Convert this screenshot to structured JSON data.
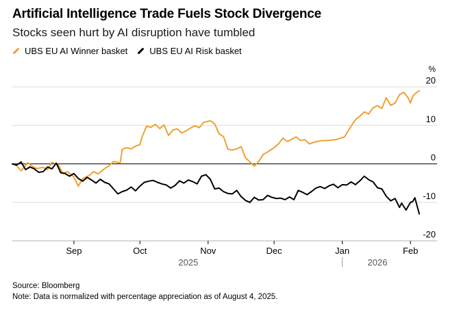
{
  "header": {
    "title": "Artificial Intelligence Trade Fuels Stock Divergence",
    "subtitle": "Stocks seen hurt by AI disruption have tumbled"
  },
  "footer": {
    "source": "Source: Bloomberg",
    "note": "Note: Data is normalized with percentage appreciation as of August 4, 2025."
  },
  "colors": {
    "winner": "#f0a030",
    "risk": "#000000",
    "grid": "#dcdcdc",
    "zero": "#000000"
  },
  "chart_data": {
    "type": "line",
    "y_unit": "%",
    "ylim": [
      -20,
      20
    ],
    "y_ticks": [
      20,
      10,
      0,
      -10,
      -20
    ],
    "x_range": [
      "2025-08-04",
      "2026-02-05"
    ],
    "x_ticks": [
      {
        "date": "2025-09-01",
        "label": "Sep"
      },
      {
        "date": "2025-10-01",
        "label": "Oct"
      },
      {
        "date": "2025-11-01",
        "label": "Nov"
      },
      {
        "date": "2025-12-01",
        "label": "Dec"
      },
      {
        "date": "2026-01-01",
        "label": "Jan"
      },
      {
        "date": "2026-02-01",
        "label": "Feb"
      }
    ],
    "year_labels": [
      {
        "date": "2025-10-23",
        "label": "2025"
      },
      {
        "date": "2026-01-17",
        "label": "2026"
      }
    ],
    "year_divider": "2026-01-01",
    "grid": true,
    "legend_position": "top-left",
    "series": [
      {
        "name": "UBS EU AI Winner basket",
        "color": "#f0a030",
        "points": [
          [
            "2025-08-04",
            0
          ],
          [
            "2025-08-06",
            -0.5
          ],
          [
            "2025-08-08",
            -1.8
          ],
          [
            "2025-08-11",
            0.3
          ],
          [
            "2025-08-13",
            -0.6
          ],
          [
            "2025-08-15",
            -1.2
          ],
          [
            "2025-08-18",
            -0.9
          ],
          [
            "2025-08-20",
            -1.5
          ],
          [
            "2025-08-22",
            0.4
          ],
          [
            "2025-08-25",
            -0.3
          ],
          [
            "2025-08-27",
            -2.5
          ],
          [
            "2025-08-29",
            -2.0
          ],
          [
            "2025-09-01",
            -3.4
          ],
          [
            "2025-09-03",
            -5.8
          ],
          [
            "2025-09-05",
            -3.8
          ],
          [
            "2025-09-08",
            -3.0
          ],
          [
            "2025-09-10",
            -2.0
          ],
          [
            "2025-09-12",
            -2.6
          ],
          [
            "2025-09-15",
            -1.2
          ],
          [
            "2025-09-17",
            -0.5
          ],
          [
            "2025-09-19",
            0.6
          ],
          [
            "2025-09-22",
            0.2
          ],
          [
            "2025-09-23",
            3.8
          ],
          [
            "2025-09-25",
            4.2
          ],
          [
            "2025-09-27",
            3.9
          ],
          [
            "2025-09-29",
            4.6
          ],
          [
            "2025-10-01",
            5.0
          ],
          [
            "2025-10-02",
            7.0
          ],
          [
            "2025-10-04",
            9.8
          ],
          [
            "2025-10-06",
            9.5
          ],
          [
            "2025-10-08",
            10.3
          ],
          [
            "2025-10-10",
            9.2
          ],
          [
            "2025-10-12",
            10.1
          ],
          [
            "2025-10-14",
            7.4
          ],
          [
            "2025-10-16",
            8.8
          ],
          [
            "2025-10-18",
            9.1
          ],
          [
            "2025-10-20",
            8.0
          ],
          [
            "2025-10-22",
            8.6
          ],
          [
            "2025-10-24",
            9.3
          ],
          [
            "2025-10-26",
            9.9
          ],
          [
            "2025-10-28",
            9.4
          ],
          [
            "2025-10-30",
            10.8
          ],
          [
            "2025-11-02",
            11.2
          ],
          [
            "2025-11-04",
            10.4
          ],
          [
            "2025-11-06",
            7.8
          ],
          [
            "2025-11-08",
            7.1
          ],
          [
            "2025-11-10",
            3.8
          ],
          [
            "2025-11-12",
            3.6
          ],
          [
            "2025-11-14",
            3.9
          ],
          [
            "2025-11-16",
            4.5
          ],
          [
            "2025-11-18",
            1.6
          ],
          [
            "2025-11-20",
            0.5
          ],
          [
            "2025-11-22",
            -0.6
          ],
          [
            "2025-11-24",
            0.6
          ],
          [
            "2025-11-26",
            2.4
          ],
          [
            "2025-11-28",
            3.1
          ],
          [
            "2025-12-01",
            4.2
          ],
          [
            "2025-12-03",
            5.2
          ],
          [
            "2025-12-05",
            6.7
          ],
          [
            "2025-12-07",
            5.8
          ],
          [
            "2025-12-09",
            6.4
          ],
          [
            "2025-12-11",
            7.0
          ],
          [
            "2025-12-13",
            6.1
          ],
          [
            "2025-12-15",
            6.3
          ],
          [
            "2025-12-17",
            5.2
          ],
          [
            "2025-12-19",
            5.6
          ],
          [
            "2025-12-22",
            6.0
          ],
          [
            "2025-12-25",
            6.1
          ],
          [
            "2025-12-29",
            6.3
          ],
          [
            "2026-01-02",
            7.0
          ],
          [
            "2026-01-05",
            9.8
          ],
          [
            "2026-01-07",
            11.5
          ],
          [
            "2026-01-09",
            12.4
          ],
          [
            "2026-01-11",
            13.5
          ],
          [
            "2026-01-13",
            13.0
          ],
          [
            "2026-01-15",
            14.6
          ],
          [
            "2026-01-17",
            15.1
          ],
          [
            "2026-01-19",
            14.4
          ],
          [
            "2026-01-21",
            17.2
          ],
          [
            "2026-01-23",
            15.2
          ],
          [
            "2026-01-25",
            15.8
          ],
          [
            "2026-01-27",
            18.0
          ],
          [
            "2026-01-29",
            18.6
          ],
          [
            "2026-01-31",
            17.1
          ],
          [
            "2026-02-01",
            15.8
          ],
          [
            "2026-02-02",
            17.5
          ],
          [
            "2026-02-03",
            18.2
          ],
          [
            "2026-02-05",
            19.0
          ]
        ]
      },
      {
        "name": "UBS EU AI Risk basket",
        "color": "#000000",
        "points": [
          [
            "2025-08-04",
            0
          ],
          [
            "2025-08-06",
            -0.3
          ],
          [
            "2025-08-08",
            0.5
          ],
          [
            "2025-08-10",
            -1.5
          ],
          [
            "2025-08-12",
            -0.8
          ],
          [
            "2025-08-14",
            -1.3
          ],
          [
            "2025-08-16",
            -2.2
          ],
          [
            "2025-08-18",
            -2.0
          ],
          [
            "2025-08-20",
            -0.8
          ],
          [
            "2025-08-22",
            -1.3
          ],
          [
            "2025-08-24",
            0.2
          ],
          [
            "2025-08-26",
            -2.3
          ],
          [
            "2025-08-28",
            -2.5
          ],
          [
            "2025-08-30",
            -3.2
          ],
          [
            "2025-09-01",
            -2.5
          ],
          [
            "2025-09-03",
            -3.8
          ],
          [
            "2025-09-05",
            -4.5
          ],
          [
            "2025-09-07",
            -3.5
          ],
          [
            "2025-09-09",
            -4.2
          ],
          [
            "2025-09-11",
            -5.0
          ],
          [
            "2025-09-13",
            -4.0
          ],
          [
            "2025-09-15",
            -4.8
          ],
          [
            "2025-09-17",
            -5.2
          ],
          [
            "2025-09-19",
            -6.5
          ],
          [
            "2025-09-21",
            -7.8
          ],
          [
            "2025-09-23",
            -7.2
          ],
          [
            "2025-09-25",
            -6.8
          ],
          [
            "2025-09-27",
            -6.0
          ],
          [
            "2025-09-29",
            -7.0
          ],
          [
            "2025-10-01",
            -5.8
          ],
          [
            "2025-10-03",
            -4.8
          ],
          [
            "2025-10-05",
            -4.5
          ],
          [
            "2025-10-07",
            -4.3
          ],
          [
            "2025-10-09",
            -4.8
          ],
          [
            "2025-10-11",
            -5.2
          ],
          [
            "2025-10-13",
            -5.5
          ],
          [
            "2025-10-15",
            -6.3
          ],
          [
            "2025-10-17",
            -5.6
          ],
          [
            "2025-10-19",
            -4.4
          ],
          [
            "2025-10-21",
            -5.0
          ],
          [
            "2025-10-23",
            -4.2
          ],
          [
            "2025-10-25",
            -4.6
          ],
          [
            "2025-10-27",
            -5.2
          ],
          [
            "2025-10-29",
            -3.2
          ],
          [
            "2025-10-31",
            -2.8
          ],
          [
            "2025-11-02",
            -4.0
          ],
          [
            "2025-11-04",
            -6.5
          ],
          [
            "2025-11-06",
            -6.3
          ],
          [
            "2025-11-08",
            -7.2
          ],
          [
            "2025-11-10",
            -7.7
          ],
          [
            "2025-11-12",
            -7.8
          ],
          [
            "2025-11-14",
            -6.9
          ],
          [
            "2025-11-16",
            -8.5
          ],
          [
            "2025-11-18",
            -9.5
          ],
          [
            "2025-11-20",
            -10.0
          ],
          [
            "2025-11-22",
            -8.7
          ],
          [
            "2025-11-24",
            -9.4
          ],
          [
            "2025-11-26",
            -9.3
          ],
          [
            "2025-11-28",
            -8.2
          ],
          [
            "2025-11-30",
            -8.7
          ],
          [
            "2025-12-02",
            -9.0
          ],
          [
            "2025-12-04",
            -8.9
          ],
          [
            "2025-12-06",
            -9.3
          ],
          [
            "2025-12-08",
            -8.6
          ],
          [
            "2025-12-10",
            -9.3
          ],
          [
            "2025-12-12",
            -6.9
          ],
          [
            "2025-12-14",
            -7.4
          ],
          [
            "2025-12-16",
            -8.0
          ],
          [
            "2025-12-18",
            -7.2
          ],
          [
            "2025-12-20",
            -6.3
          ],
          [
            "2025-12-22",
            -5.9
          ],
          [
            "2025-12-24",
            -6.4
          ],
          [
            "2025-12-26",
            -5.7
          ],
          [
            "2025-12-28",
            -5.3
          ],
          [
            "2025-12-30",
            -6.2
          ],
          [
            "2026-01-01",
            -5.4
          ],
          [
            "2026-01-03",
            -5.5
          ],
          [
            "2026-01-05",
            -4.7
          ],
          [
            "2026-01-07",
            -5.4
          ],
          [
            "2026-01-09",
            -4.4
          ],
          [
            "2026-01-11",
            -3.2
          ],
          [
            "2026-01-13",
            -4.1
          ],
          [
            "2026-01-15",
            -4.7
          ],
          [
            "2026-01-17",
            -6.2
          ],
          [
            "2026-01-19",
            -6.5
          ],
          [
            "2026-01-21",
            -8.4
          ],
          [
            "2026-01-23",
            -9.6
          ],
          [
            "2026-01-25",
            -9.0
          ],
          [
            "2026-01-27",
            -11.3
          ],
          [
            "2026-01-28",
            -10.2
          ],
          [
            "2026-01-30",
            -12.0
          ],
          [
            "2026-01-31",
            -11.0
          ],
          [
            "2026-02-01",
            -10.0
          ],
          [
            "2026-02-02",
            -9.8
          ],
          [
            "2026-02-03",
            -8.8
          ],
          [
            "2026-02-05",
            -13.0
          ]
        ]
      }
    ]
  }
}
